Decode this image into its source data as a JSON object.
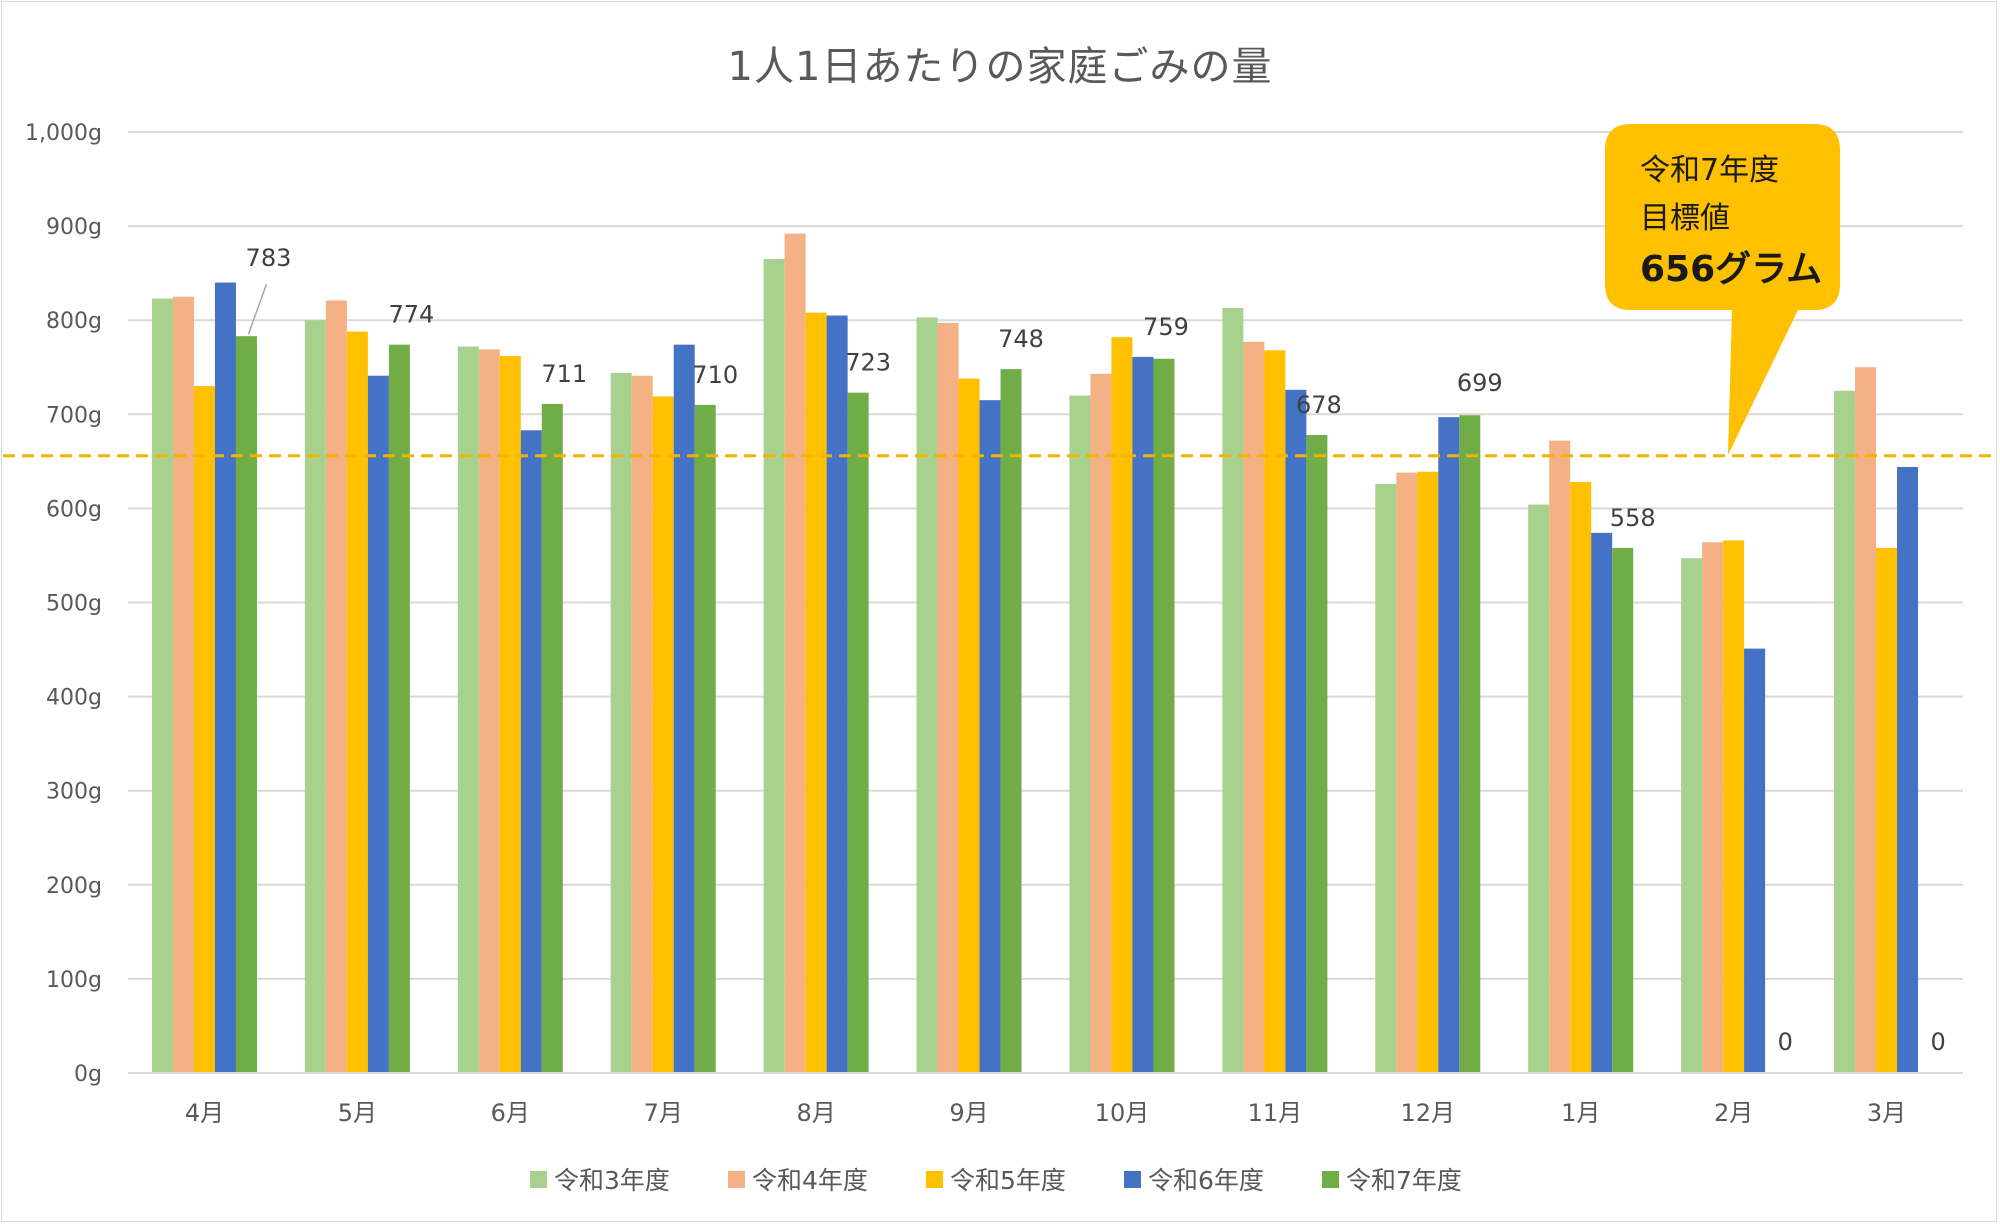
{
  "chart_data": {
    "type": "bar",
    "title": "1人1日あたりの家庭ごみの量",
    "categories": [
      "4月",
      "5月",
      "6月",
      "7月",
      "8月",
      "9月",
      "10月",
      "11月",
      "12月",
      "1月",
      "2月",
      "3月"
    ],
    "y_ticks": [
      "0g",
      "100g",
      "200g",
      "300g",
      "400g",
      "500g",
      "600g",
      "700g",
      "800g",
      "900g",
      "1,000g"
    ],
    "ylim": [
      0,
      1000
    ],
    "grid": true,
    "legend_position": "bottom",
    "series": [
      {
        "name": "令和3年度",
        "color": "#a9d18e",
        "values": [
          823,
          800,
          772,
          744,
          865,
          803,
          720,
          813,
          626,
          604,
          547,
          725
        ]
      },
      {
        "name": "令和4年度",
        "color": "#f4b183",
        "values": [
          825,
          821,
          769,
          741,
          892,
          797,
          743,
          777,
          638,
          672,
          564,
          750
        ]
      },
      {
        "name": "令和5年度",
        "color": "#ffc000",
        "values": [
          730,
          788,
          762,
          719,
          808,
          738,
          782,
          768,
          639,
          628,
          566,
          558
        ]
      },
      {
        "name": "令和6年度",
        "color": "#4472c4",
        "values": [
          840,
          741,
          683,
          774,
          805,
          715,
          761,
          726,
          697,
          574,
          451,
          644
        ]
      },
      {
        "name": "令和7年度",
        "color": "#70ad47",
        "values": [
          783,
          774,
          711,
          710,
          723,
          748,
          759,
          678,
          699,
          558,
          0,
          0
        ]
      }
    ],
    "data_labels": [
      "783",
      "774",
      "711",
      "710",
      "723",
      "748",
      "759",
      "678",
      "699",
      "558",
      "0",
      "0"
    ],
    "target_line": {
      "value": 656,
      "color": "#f2b400",
      "style": "dashed"
    },
    "callout": {
      "lines": [
        "令和7年度",
        "目標値",
        "656グラム"
      ],
      "fill": "#ffc000"
    }
  }
}
